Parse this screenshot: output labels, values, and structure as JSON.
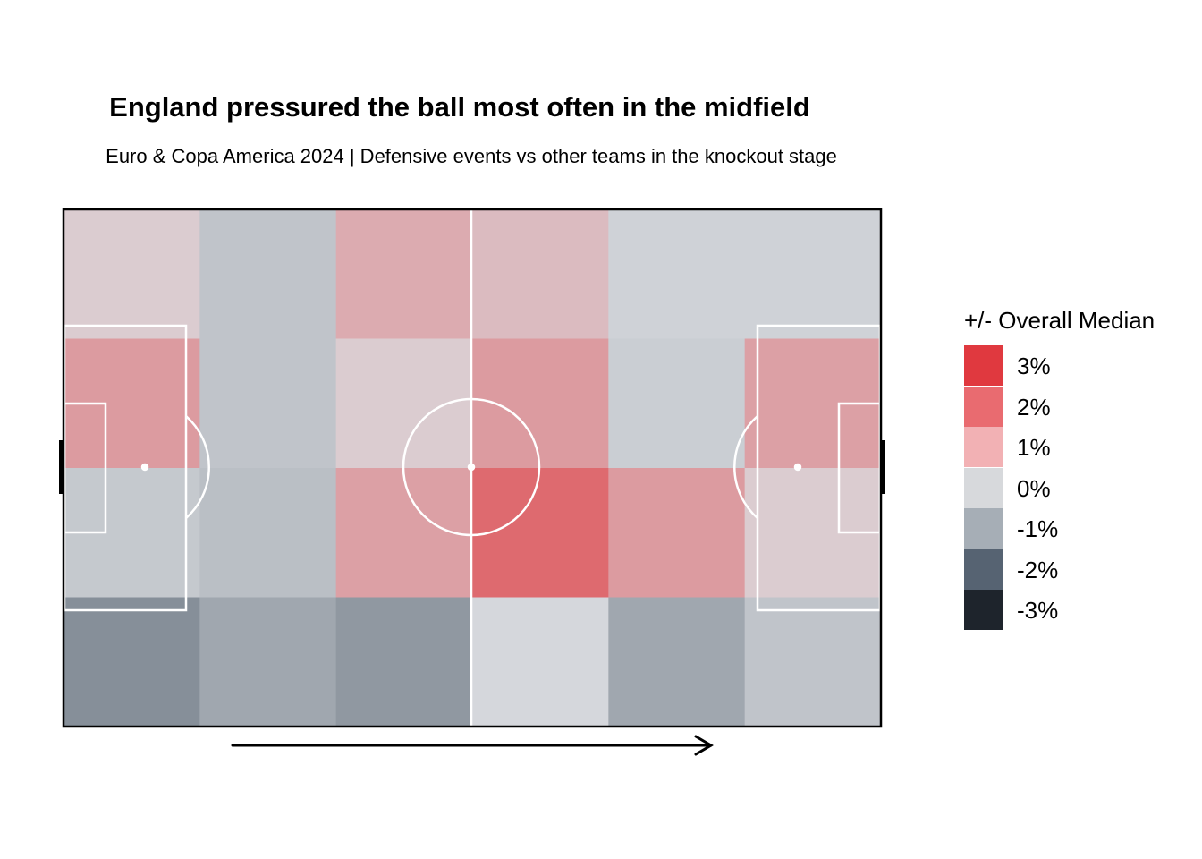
{
  "title": "England pressured the ball most often in the midfield",
  "subtitle": "Euro & Copa America 2024 | Defensive events vs other teams in the knockout stage",
  "legend": {
    "title": "+/- Overall Median",
    "items": [
      {
        "label": "3%",
        "color": "#e0393f"
      },
      {
        "label": "2%",
        "color": "#e96b70"
      },
      {
        "label": "1%",
        "color": "#f2b1b4"
      },
      {
        "label": "0%",
        "color": "#d7d9dc"
      },
      {
        "label": "-1%",
        "color": "#a6aeb6"
      },
      {
        "label": "-2%",
        "color": "#566372"
      },
      {
        "label": "-3%",
        "color": "#1e242c"
      }
    ]
  },
  "chart_data": {
    "type": "heatmap",
    "title": "England pressured the ball most often in the midfield",
    "subtitle": "Euro & Copa America 2024 | Defensive events vs other teams in the knockout stage",
    "columns": 6,
    "rows": 4,
    "unit": "percentage points vs overall median",
    "direction_of_play": "left-to-right",
    "values": [
      [
        0.3,
        -0.5,
        0.9,
        0.6,
        -0.2,
        -0.2
      ],
      [
        1.2,
        -0.5,
        0.3,
        1.2,
        -0.3,
        1.1
      ],
      [
        -0.4,
        -0.6,
        1.1,
        2.1,
        1.2,
        0.3
      ],
      [
        -1.6,
        -1.1,
        -1.4,
        -0.1,
        -1.1,
        -0.5
      ]
    ],
    "legend_scale": [
      "3%",
      "2%",
      "1%",
      "0%",
      "-1%",
      "-2%",
      "-3%"
    ]
  }
}
